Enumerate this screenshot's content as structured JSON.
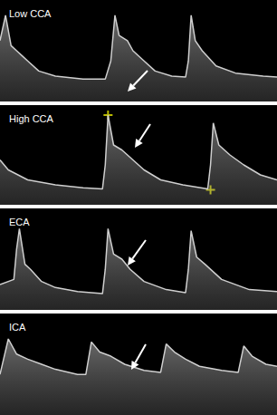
{
  "chart_data": [
    {
      "type": "line",
      "title": "Low CCA",
      "color": "#cfcfcf",
      "tick_labels": false,
      "xlim": [
        0,
        100
      ],
      "ylim": [
        0,
        100
      ],
      "x": [
        0,
        2,
        4,
        6,
        8,
        10,
        14,
        20,
        30,
        38,
        40,
        41.5,
        43,
        46,
        48,
        52,
        56,
        62,
        67,
        68,
        69,
        70.5,
        73,
        78,
        85,
        95,
        100
      ],
      "values": [
        60,
        85,
        55,
        50,
        45,
        40,
        30,
        25,
        22,
        22,
        40,
        85,
        65,
        60,
        50,
        40,
        30,
        25,
        24,
        40,
        85,
        60,
        50,
        35,
        28,
        25,
        24
      ]
    },
    {
      "type": "line",
      "title": "High CCA",
      "color": "#cfcfcf",
      "tick_labels": false,
      "xlim": [
        0,
        100
      ],
      "ylim": [
        0,
        100
      ],
      "x": [
        0,
        3,
        10,
        20,
        30,
        37,
        38,
        39,
        41,
        44,
        48,
        52,
        58,
        66,
        75,
        76,
        77,
        79,
        83,
        88,
        94,
        100
      ],
      "values": [
        45,
        35,
        25,
        20,
        17,
        16,
        40,
        90,
        60,
        55,
        45,
        35,
        25,
        20,
        16,
        40,
        82,
        60,
        50,
        40,
        30,
        25
      ],
      "calipers": {
        "x": [
          39,
          76
        ],
        "y": [
          90,
          15
        ]
      }
    },
    {
      "type": "line",
      "title": "ECA",
      "color": "#cfcfcf",
      "tick_labels": false,
      "xlim": [
        0,
        100
      ],
      "ylim": [
        0,
        100
      ],
      "x": [
        0,
        5,
        6,
        7,
        9,
        11,
        15,
        20,
        28,
        37,
        38,
        39,
        41,
        44,
        47,
        52,
        60,
        67,
        68,
        69,
        71,
        74,
        80,
        90,
        100
      ],
      "values": [
        25,
        30,
        60,
        80,
        45,
        40,
        28,
        22,
        18,
        16,
        40,
        80,
        55,
        50,
        40,
        28,
        20,
        17,
        40,
        78,
        52,
        45,
        30,
        20,
        18
      ]
    },
    {
      "type": "line",
      "title": "ICA",
      "color": "#cfcfcf",
      "tick_labels": false,
      "xlim": [
        0,
        100
      ],
      "ylim": [
        0,
        100
      ],
      "x": [
        0,
        3,
        6,
        10,
        15,
        20,
        28,
        31,
        33,
        36,
        40,
        45,
        52,
        58,
        60,
        63,
        67,
        72,
        80,
        86,
        88,
        91,
        96,
        100
      ],
      "values": [
        40,
        75,
        60,
        55,
        50,
        45,
        40,
        40,
        72,
        62,
        58,
        50,
        44,
        42,
        70,
        62,
        55,
        48,
        44,
        42,
        68,
        58,
        50,
        48
      ]
    }
  ]
}
